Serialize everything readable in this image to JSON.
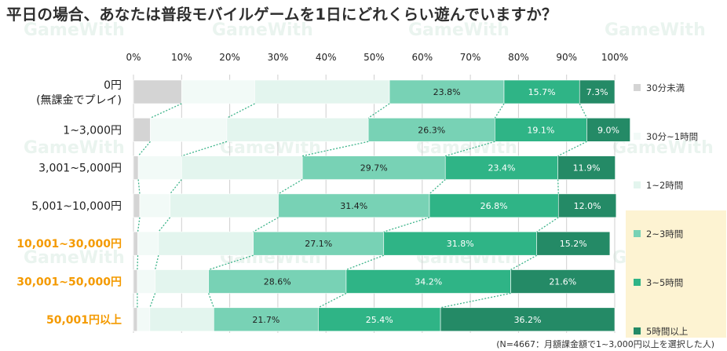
{
  "title": "平日の場合、あなたは普段モバイルゲームを1日にどれくらい遊んでいますか？",
  "note": "(N=4667：月額課金額で1~3,000円以上を選択した人)",
  "watermark_text": "GameWith",
  "colors": {
    "30分未満": "#d4d4d4",
    "30分~1時間": "#f2faf7",
    "1~2時間": "#e3f5ee",
    "2~3時間": "#78d2b5",
    "3~5時間": "#2fb486",
    "5時間以上": "#248a66",
    "highlight_label": "#f49a00",
    "legend_panel": "#fdf3d2",
    "connector": "#3db48a"
  },
  "chart_data": {
    "type": "bar",
    "orientation": "horizontal",
    "stacked": true,
    "normalized": true,
    "categories": [
      "0円\n(無課金でプレイ)",
      "1~3,000円",
      "3,001~5,000円",
      "5,001~10,000円",
      "10,001~30,000円",
      "30,001~50,000円",
      "50,001円以上"
    ],
    "highlighted_categories": [
      4,
      5,
      6
    ],
    "xlim": [
      0,
      100
    ],
    "xticks": [
      "0%",
      "10%",
      "20%",
      "30%",
      "40%",
      "50%",
      "60%",
      "70%",
      "80%",
      "90%",
      "100%"
    ],
    "legend_position": "right",
    "series": [
      {
        "name": "30分未満",
        "values": [
          10.0,
          3.5,
          1.0,
          1.3,
          0.9,
          0.8,
          0.8
        ],
        "labeled": false
      },
      {
        "name": "30分~1時間",
        "values": [
          15.2,
          15.9,
          9.0,
          6.3,
          4.3,
          3.7,
          2.6
        ],
        "labeled": false
      },
      {
        "name": "1~2時間",
        "values": [
          28.0,
          29.4,
          25.1,
          22.5,
          19.7,
          11.1,
          13.3
        ],
        "labeled": false
      },
      {
        "name": "2~3時間",
        "values": [
          23.8,
          26.3,
          29.7,
          31.4,
          27.1,
          28.6,
          21.7
        ],
        "labeled": true
      },
      {
        "name": "3~5時間",
        "values": [
          15.7,
          19.1,
          23.4,
          26.8,
          31.8,
          34.2,
          25.4
        ],
        "labeled": true
      },
      {
        "name": "5時間以上",
        "values": [
          7.3,
          9.0,
          11.9,
          12.0,
          15.2,
          21.6,
          36.2
        ],
        "labeled": true
      }
    ]
  }
}
